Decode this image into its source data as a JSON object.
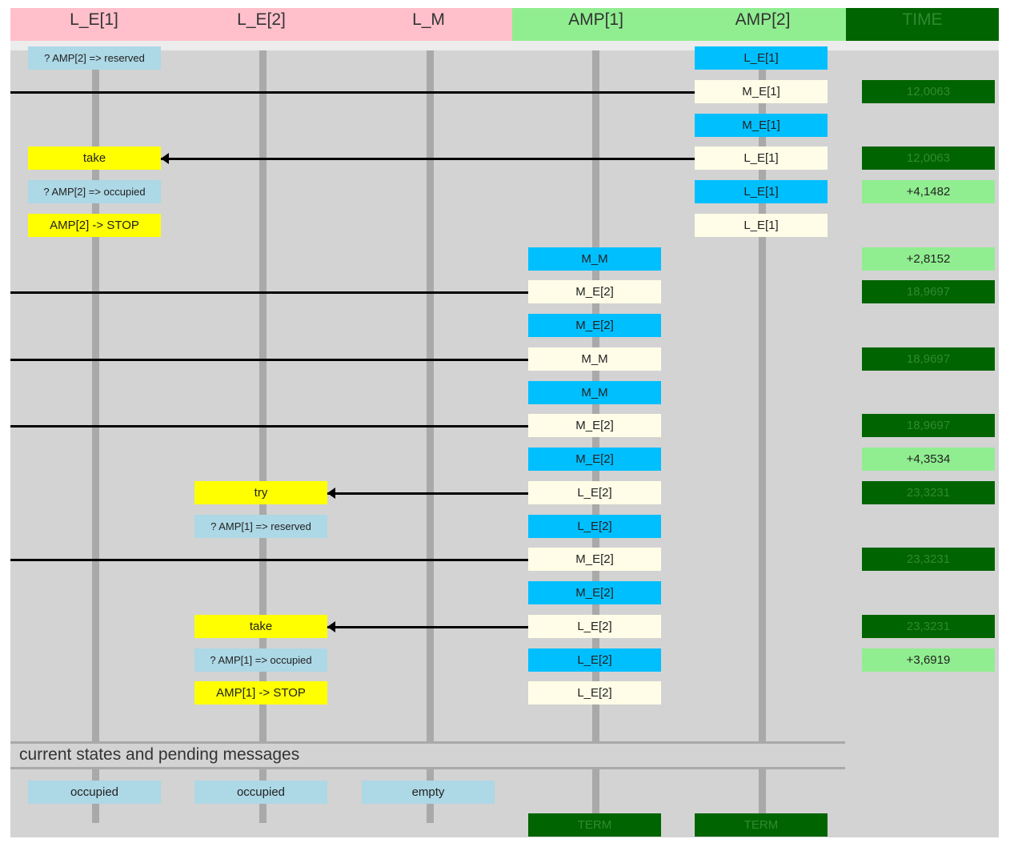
{
  "headers": [
    "L_E[1]",
    "L_E[2]",
    "L_M",
    "AMP[1]",
    "AMP[2]",
    "TIME"
  ],
  "section_title": "current states and pending messages",
  "rows": [
    {
      "boxes": [
        {
          "col": 0,
          "text": "? AMP[2] => reserved",
          "color": "lblue",
          "small": true
        },
        {
          "col": 4,
          "text": "L_E[1]",
          "color": "cyan"
        }
      ]
    },
    {
      "line": {
        "from": 4,
        "to": "left",
        "arrow": false
      },
      "boxes": [
        {
          "col": 4,
          "text": "M_E[1]",
          "color": "cream"
        },
        {
          "col": 5,
          "text": "12,0063",
          "color": "dgreen"
        }
      ]
    },
    {
      "boxes": [
        {
          "col": 4,
          "text": "M_E[1]",
          "color": "cyan"
        }
      ]
    },
    {
      "line": {
        "from": 4,
        "to": 0,
        "arrow": true
      },
      "boxes": [
        {
          "col": 0,
          "text": "take",
          "color": "yellow"
        },
        {
          "col": 4,
          "text": "L_E[1]",
          "color": "cream"
        },
        {
          "col": 5,
          "text": "12,0063",
          "color": "dgreen"
        }
      ]
    },
    {
      "boxes": [
        {
          "col": 0,
          "text": "? AMP[2] => occupied",
          "color": "lblue",
          "small": true
        },
        {
          "col": 4,
          "text": "L_E[1]",
          "color": "cyan"
        },
        {
          "col": 5,
          "text": "+4,1482",
          "color": "lgreen"
        }
      ]
    },
    {
      "boxes": [
        {
          "col": 0,
          "text": "AMP[2] -> STOP",
          "color": "yellow"
        },
        {
          "col": 4,
          "text": "L_E[1]",
          "color": "cream"
        }
      ]
    },
    {
      "boxes": [
        {
          "col": 3,
          "text": "M_M",
          "color": "cyan"
        },
        {
          "col": 5,
          "text": "+2,8152",
          "color": "lgreen"
        }
      ]
    },
    {
      "line": {
        "from": 3,
        "to": "left",
        "arrow": false
      },
      "boxes": [
        {
          "col": 3,
          "text": "M_E[2]",
          "color": "cream"
        },
        {
          "col": 5,
          "text": "18,9697",
          "color": "dgreen"
        }
      ]
    },
    {
      "boxes": [
        {
          "col": 3,
          "text": "M_E[2]",
          "color": "cyan"
        }
      ]
    },
    {
      "line": {
        "from": 3,
        "to": "left",
        "arrow": false
      },
      "boxes": [
        {
          "col": 3,
          "text": "M_M",
          "color": "cream"
        },
        {
          "col": 5,
          "text": "18,9697",
          "color": "dgreen"
        }
      ]
    },
    {
      "boxes": [
        {
          "col": 3,
          "text": "M_M",
          "color": "cyan"
        }
      ]
    },
    {
      "line": {
        "from": 3,
        "to": "left",
        "arrow": false
      },
      "boxes": [
        {
          "col": 3,
          "text": "M_E[2]",
          "color": "cream"
        },
        {
          "col": 5,
          "text": "18,9697",
          "color": "dgreen"
        }
      ]
    },
    {
      "boxes": [
        {
          "col": 3,
          "text": "M_E[2]",
          "color": "cyan"
        },
        {
          "col": 5,
          "text": "+4,3534",
          "color": "lgreen"
        }
      ]
    },
    {
      "line": {
        "from": 3,
        "to": 1,
        "arrow": true
      },
      "boxes": [
        {
          "col": 1,
          "text": "try",
          "color": "yellow"
        },
        {
          "col": 3,
          "text": "L_E[2]",
          "color": "cream"
        },
        {
          "col": 5,
          "text": "23,3231",
          "color": "dgreen"
        }
      ]
    },
    {
      "boxes": [
        {
          "col": 1,
          "text": "? AMP[1] => reserved",
          "color": "lblue",
          "small": true
        },
        {
          "col": 3,
          "text": "L_E[2]",
          "color": "cyan"
        }
      ]
    },
    {
      "line": {
        "from": 3,
        "to": "left",
        "arrow": false
      },
      "boxes": [
        {
          "col": 3,
          "text": "M_E[2]",
          "color": "cream"
        },
        {
          "col": 5,
          "text": "23,3231",
          "color": "dgreen"
        }
      ]
    },
    {
      "boxes": [
        {
          "col": 3,
          "text": "M_E[2]",
          "color": "cyan"
        }
      ]
    },
    {
      "line": {
        "from": 3,
        "to": 1,
        "arrow": true
      },
      "boxes": [
        {
          "col": 1,
          "text": "take",
          "color": "yellow"
        },
        {
          "col": 3,
          "text": "L_E[2]",
          "color": "cream"
        },
        {
          "col": 5,
          "text": "23,3231",
          "color": "dgreen"
        }
      ]
    },
    {
      "boxes": [
        {
          "col": 1,
          "text": "? AMP[1] => occupied",
          "color": "lblue",
          "small": true
        },
        {
          "col": 3,
          "text": "L_E[2]",
          "color": "cyan"
        },
        {
          "col": 5,
          "text": "+3,6919",
          "color": "lgreen"
        }
      ]
    },
    {
      "boxes": [
        {
          "col": 1,
          "text": "AMP[1] -> STOP",
          "color": "yellow"
        },
        {
          "col": 3,
          "text": "L_E[2]",
          "color": "cream"
        }
      ]
    }
  ],
  "states": [
    {
      "col": 0,
      "text": "occupied",
      "color": "lblue"
    },
    {
      "col": 1,
      "text": "occupied",
      "color": "lblue"
    },
    {
      "col": 2,
      "text": "empty",
      "color": "lblue"
    },
    {
      "col": 3,
      "text": "TERM",
      "color": "dgreen",
      "row": "term"
    },
    {
      "col": 4,
      "text": "TERM",
      "color": "dgreen",
      "row": "term"
    }
  ]
}
